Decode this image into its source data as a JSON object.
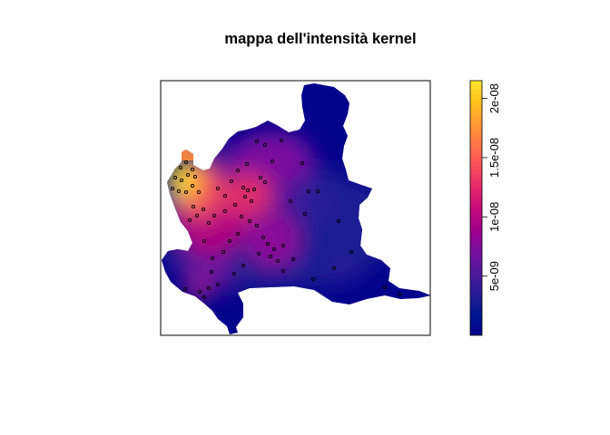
{
  "plot": {
    "title": "mappa dell'intensità kernel",
    "colorbar": {
      "palette": [
        "#00008B",
        "#00188F",
        "#2A1C95",
        "#50199A",
        "#7B0E9E",
        "#A2008C",
        "#C50C7A",
        "#E6296A",
        "#F8505A",
        "#FF7647",
        "#FF9C33",
        "#FFC21F",
        "#FFE62A"
      ],
      "range": [
        0,
        2.15e-08
      ],
      "ticks": [
        {
          "value": 5e-09,
          "label": "5e-09"
        },
        {
          "value": 1e-08,
          "label": "1e-08"
        },
        {
          "value": 1.5e-08,
          "label": "1.5e-08"
        },
        {
          "value": 2e-08,
          "label": "2e-08"
        }
      ]
    }
  }
}
